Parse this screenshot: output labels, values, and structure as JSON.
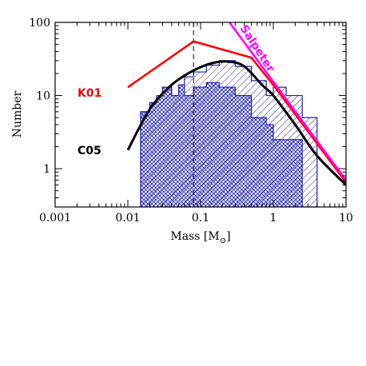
{
  "chart_data": {
    "type": "line",
    "xlabel": "Mass [M",
    "xlabel_sub": "⊙",
    "xlabel_close": "]",
    "ylabel": "Number",
    "xscale": "log",
    "yscale": "log",
    "xlim": [
      0.001,
      10
    ],
    "ylim": [
      0.3,
      100
    ],
    "x_ticks": [
      {
        "value": 0.001,
        "label": "0.001"
      },
      {
        "value": 0.01,
        "label": "0.01"
      },
      {
        "value": 0.1,
        "label": "0.1"
      },
      {
        "value": 1,
        "label": "1"
      },
      {
        "value": 10,
        "label": "10"
      }
    ],
    "y_ticks": [
      {
        "value": 1,
        "label": "1"
      },
      {
        "value": 10,
        "label": "10"
      },
      {
        "value": 100,
        "label": "100"
      }
    ],
    "histograms": [
      {
        "hatch": "single",
        "color": "#1f1fb4",
        "bins": [
          {
            "x0": 0.015,
            "x1": 0.02,
            "y": 6
          },
          {
            "x0": 0.02,
            "x1": 0.025,
            "y": 8
          },
          {
            "x0": 0.025,
            "x1": 0.03,
            "y": 10
          },
          {
            "x0": 0.03,
            "x1": 0.04,
            "y": 13
          },
          {
            "x0": 0.04,
            "x1": 0.05,
            "y": 10
          },
          {
            "x0": 0.05,
            "x1": 0.06,
            "y": 14
          },
          {
            "x0": 0.06,
            "x1": 0.08,
            "y": 18
          },
          {
            "x0": 0.08,
            "x1": 0.12,
            "y": 21
          },
          {
            "x0": 0.12,
            "x1": 0.18,
            "y": 26
          },
          {
            "x0": 0.18,
            "x1": 0.3,
            "y": 30
          },
          {
            "x0": 0.3,
            "x1": 0.5,
            "y": 25
          },
          {
            "x0": 0.5,
            "x1": 0.8,
            "y": 16
          },
          {
            "x0": 0.8,
            "x1": 1.0,
            "y": 10
          },
          {
            "x0": 1.0,
            "x1": 1.5,
            "y": 13
          },
          {
            "x0": 1.5,
            "x1": 2.5,
            "y": 10
          },
          {
            "x0": 2.5,
            "x1": 4.0,
            "y": 5
          }
        ]
      },
      {
        "hatch": "cross",
        "color": "#1f1fb4",
        "bins": [
          {
            "x0": 0.015,
            "x1": 0.02,
            "y": 6
          },
          {
            "x0": 0.02,
            "x1": 0.025,
            "y": 8
          },
          {
            "x0": 0.025,
            "x1": 0.03,
            "y": 10
          },
          {
            "x0": 0.03,
            "x1": 0.04,
            "y": 13
          },
          {
            "x0": 0.04,
            "x1": 0.05,
            "y": 10
          },
          {
            "x0": 0.05,
            "x1": 0.06,
            "y": 14
          },
          {
            "x0": 0.06,
            "x1": 0.08,
            "y": 10
          },
          {
            "x0": 0.08,
            "x1": 0.12,
            "y": 13
          },
          {
            "x0": 0.12,
            "x1": 0.18,
            "y": 15
          },
          {
            "x0": 0.18,
            "x1": 0.3,
            "y": 13
          },
          {
            "x0": 0.3,
            "x1": 0.5,
            "y": 10
          },
          {
            "x0": 0.5,
            "x1": 0.8,
            "y": 5
          },
          {
            "x0": 0.8,
            "x1": 1.0,
            "y": 4
          },
          {
            "x0": 1.0,
            "x1": 1.5,
            "y": 2.5
          },
          {
            "x0": 1.5,
            "x1": 2.5,
            "y": 2.5
          },
          {
            "x0": 2.5,
            "x1": 4.0,
            "y": 0
          }
        ]
      }
    ],
    "series": [
      {
        "name": "K01",
        "color": "#ff0000",
        "points": [
          [
            0.01,
            13
          ],
          [
            0.08,
            55
          ],
          [
            0.5,
            33
          ],
          [
            1.0,
            14
          ],
          [
            10,
            0.65
          ]
        ]
      },
      {
        "name": "C05",
        "color": "#000000",
        "points": [
          [
            0.01,
            1.8
          ],
          [
            0.02,
            6.5
          ],
          [
            0.04,
            14
          ],
          [
            0.08,
            22
          ],
          [
            0.15,
            28
          ],
          [
            0.25,
            29
          ],
          [
            0.4,
            25
          ],
          [
            0.7,
            14
          ],
          [
            1.0,
            10
          ],
          [
            2.0,
            4
          ],
          [
            4.0,
            1.5
          ],
          [
            10,
            0.6
          ]
        ]
      },
      {
        "name": "Salpeter",
        "color": "#ff00ff",
        "points": [
          [
            0.25,
            100
          ],
          [
            10,
            0.7
          ]
        ]
      }
    ],
    "vline_x": 0.08
  }
}
